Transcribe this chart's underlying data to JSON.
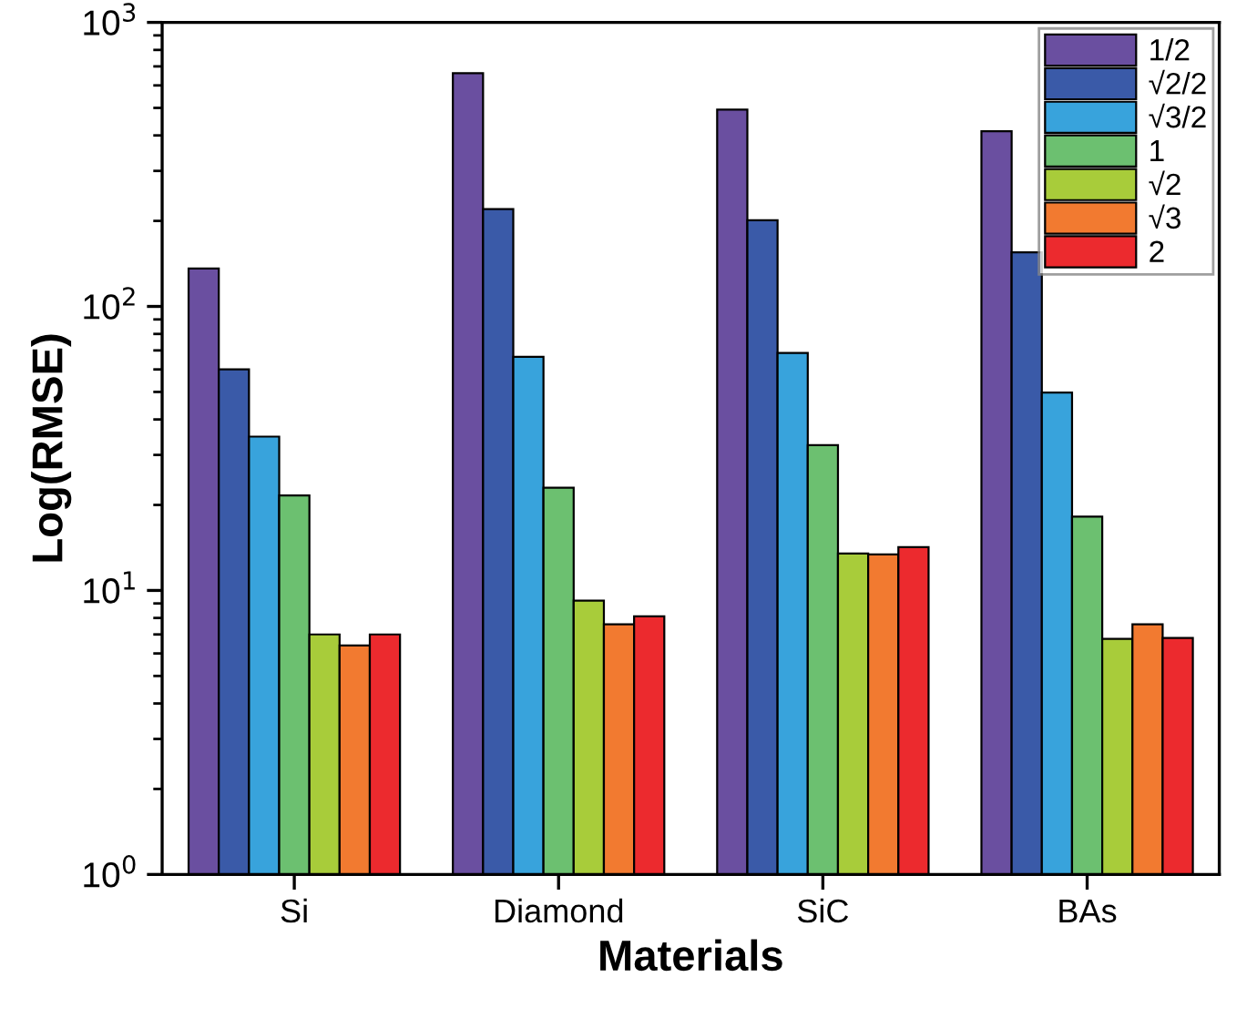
{
  "chart_data": {
    "type": "bar",
    "xlabel": "Materials",
    "ylabel": "Log(RMSE)",
    "categories": [
      "Si",
      "Diamond",
      "SiC",
      "BAs"
    ],
    "series": [
      {
        "name": "1/2",
        "color": "#6a4fa0",
        "values": [
          136,
          662,
          493,
          414
        ]
      },
      {
        "name": "√2/2",
        "color": "#3a5aa8",
        "values": [
          60,
          220,
          201,
          155
        ]
      },
      {
        "name": "√3/2",
        "color": "#38a3dc",
        "values": [
          34.8,
          66.5,
          68.6,
          49.7
        ]
      },
      {
        "name": "1",
        "color": "#6cc070",
        "values": [
          21.6,
          23.0,
          32.5,
          18.2
        ]
      },
      {
        "name": "√2",
        "color": "#a8cc3a",
        "values": [
          7.0,
          9.2,
          13.5,
          6.75
        ]
      },
      {
        "name": "√3",
        "color": "#f27a30",
        "values": [
          6.4,
          7.6,
          13.4,
          7.6
        ]
      },
      {
        "name": "2",
        "color": "#ec2a2e",
        "values": [
          7.0,
          8.1,
          14.2,
          6.8
        ]
      }
    ],
    "log": "y",
    "ylim": [
      1,
      1000
    ],
    "yticks": [
      {
        "value": 1,
        "label": "10$^{0}$"
      },
      {
        "value": 10,
        "label": "10$^{1}$"
      },
      {
        "value": 100,
        "label": "10$^{2}$"
      },
      {
        "value": 1000,
        "label": "10$^{3}$"
      }
    ],
    "legend": "top right",
    "grid": false
  }
}
